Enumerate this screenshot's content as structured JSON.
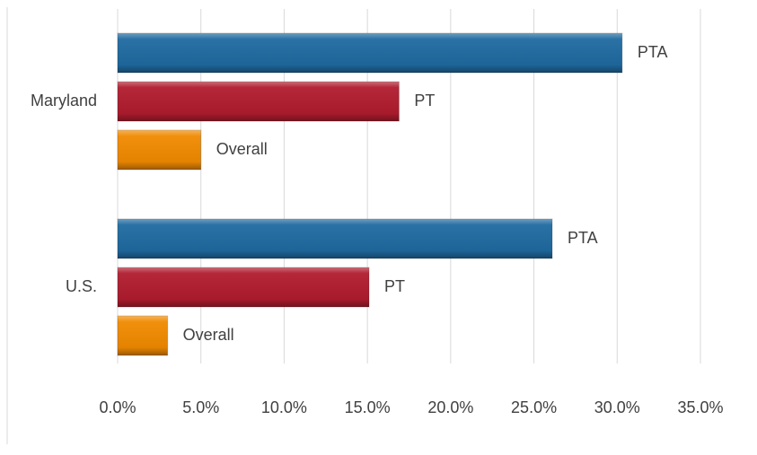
{
  "chart_data": {
    "type": "bar",
    "orientation": "horizontal",
    "categories": [
      "Maryland",
      "U.S."
    ],
    "series": [
      {
        "name": "PTA",
        "color": "#1f6aa0",
        "values": [
          30.3,
          26.1
        ]
      },
      {
        "name": "PT",
        "color": "#b01c2e",
        "values": [
          16.9,
          15.1
        ]
      },
      {
        "name": "Overall",
        "color": "#f08a00",
        "values": [
          5.0,
          3.0
        ]
      }
    ],
    "xlim": [
      0,
      35
    ],
    "xticks": [
      {
        "value": 0,
        "label": "0.0%"
      },
      {
        "value": 5,
        "label": "5.0%"
      },
      {
        "value": 10,
        "label": "10.0%"
      },
      {
        "value": 15,
        "label": "15.0%"
      },
      {
        "value": 20,
        "label": "20.0%"
      },
      {
        "value": 25,
        "label": "25.0%"
      },
      {
        "value": 30,
        "label": "30.0%"
      },
      {
        "value": 35,
        "label": "35.0%"
      }
    ],
    "grid": true
  }
}
